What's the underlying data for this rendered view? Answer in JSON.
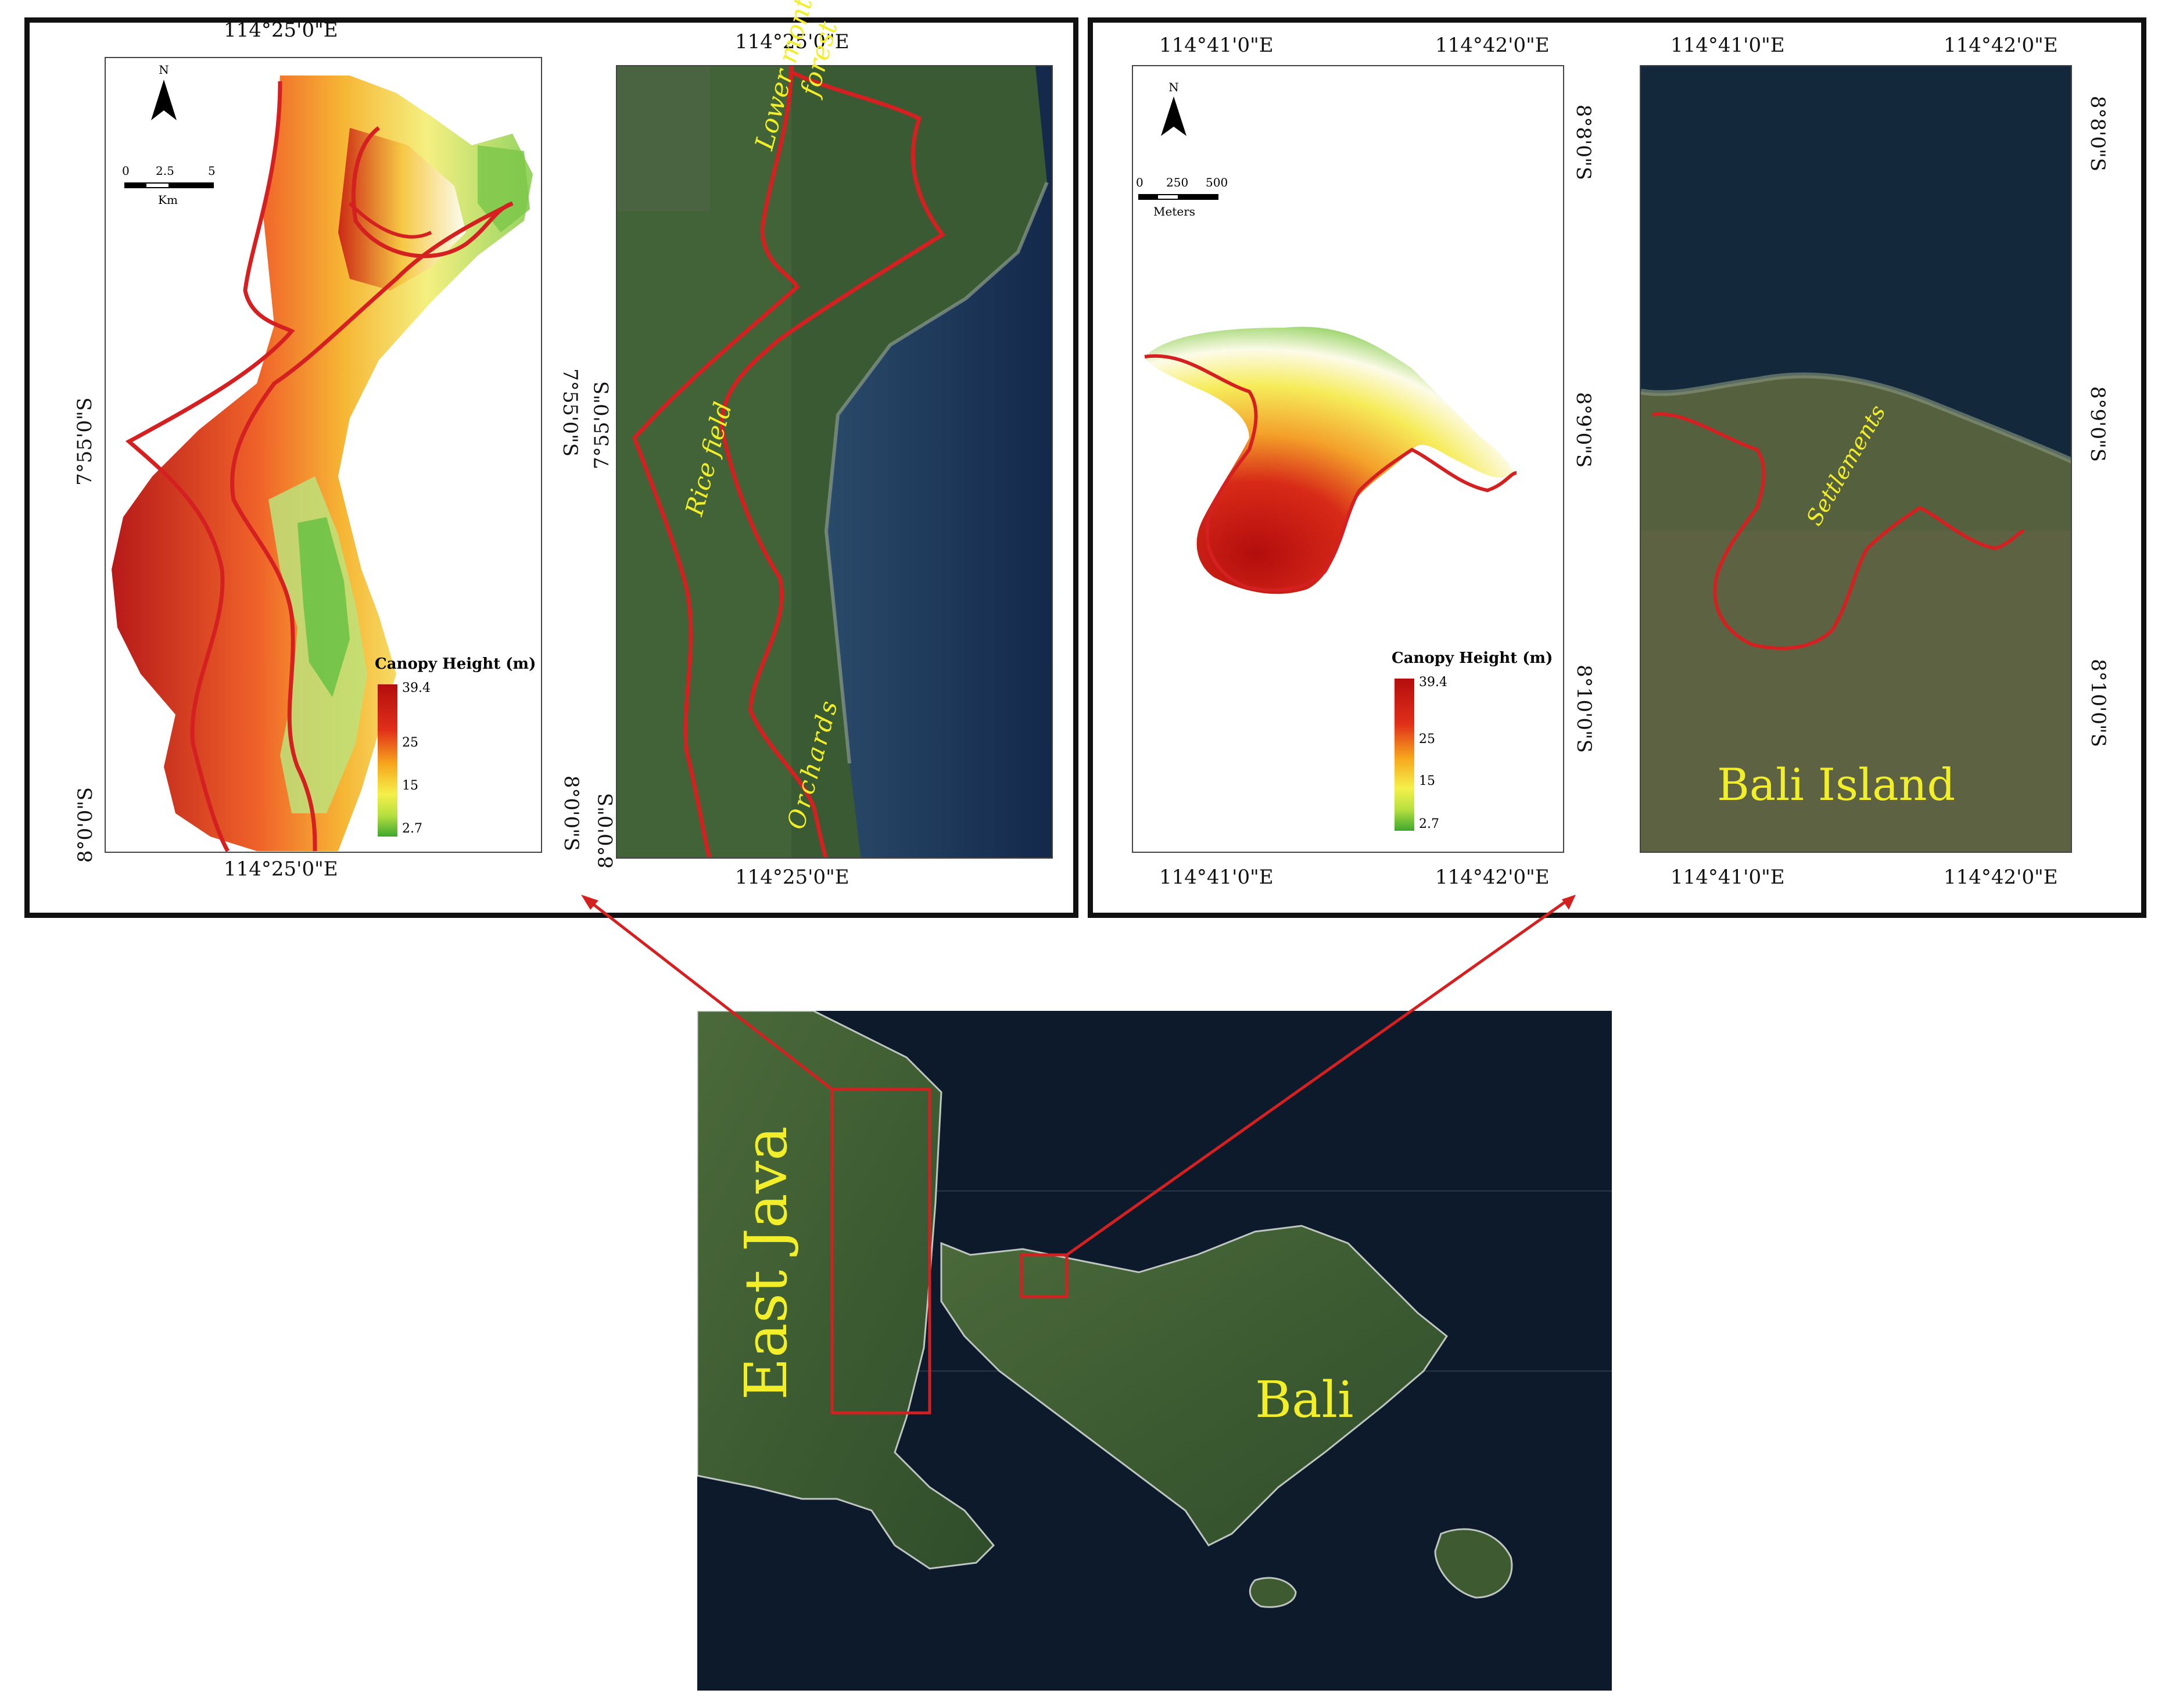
{
  "panel_left": {
    "canopy_map": {
      "top_coord": "114°25'0\"E",
      "bottom_coord": "114°25'0\"E",
      "left_lat_1": "7°55'0\"S",
      "left_lat_2": "8°0'0\"S",
      "right_lat_1": "7°55'0\"S",
      "right_lat_2": "8°0'0\"S",
      "north": "N",
      "scale_ticks": [
        "0",
        "2.5",
        "5"
      ],
      "scale_unit": "Km",
      "legend_title": "Canopy Height (m)",
      "legend_ticks": [
        "39.4",
        "25",
        "15",
        "2.7"
      ]
    },
    "satellite_map": {
      "top_coord": "114°25'0\"E",
      "bottom_coord": "114°25'0\"E",
      "left_lat_1": "7°55'0\"S",
      "left_lat_2": "8°0'0\"S",
      "labels": [
        "Lower montane forest",
        "Rice field",
        "Orchards"
      ],
      "label_lower_1": "Lower montane",
      "label_lower_2": "forest"
    }
  },
  "panel_right": {
    "canopy_map": {
      "top_coord_1": "114°41'0\"E",
      "top_coord_2": "114°42'0\"E",
      "bottom_coord_1": "114°41'0\"E",
      "bottom_coord_2": "114°42'0\"E",
      "right_lat_1": "8°8'0\"S",
      "right_lat_2": "8°9'0\"S",
      "right_lat_3": "8°10'0\"S",
      "north": "N",
      "scale_ticks": [
        "0",
        "250",
        "500"
      ],
      "scale_unit": "Meters",
      "legend_title": "Canopy Height (m)",
      "legend_ticks": [
        "39.4",
        "25",
        "15",
        "2.7"
      ]
    },
    "satellite_map": {
      "top_coord_1": "114°41'0\"E",
      "top_coord_2": "114°42'0\"E",
      "bottom_coord_1": "114°41'0\"E",
      "bottom_coord_2": "114°42'0\"E",
      "right_lat_1": "8°8'0\"S",
      "right_lat_2": "8°9'0\"S",
      "right_lat_3": "8°10'0\"S",
      "label_settlements": "Settlements",
      "label_island": "Bali Island"
    }
  },
  "overview": {
    "label_java": "East Java",
    "label_bali": "Bali"
  },
  "colors": {
    "boundary": "#d42020",
    "label_yellow": "#f2ee2a",
    "sea": "#0d1a2b"
  }
}
